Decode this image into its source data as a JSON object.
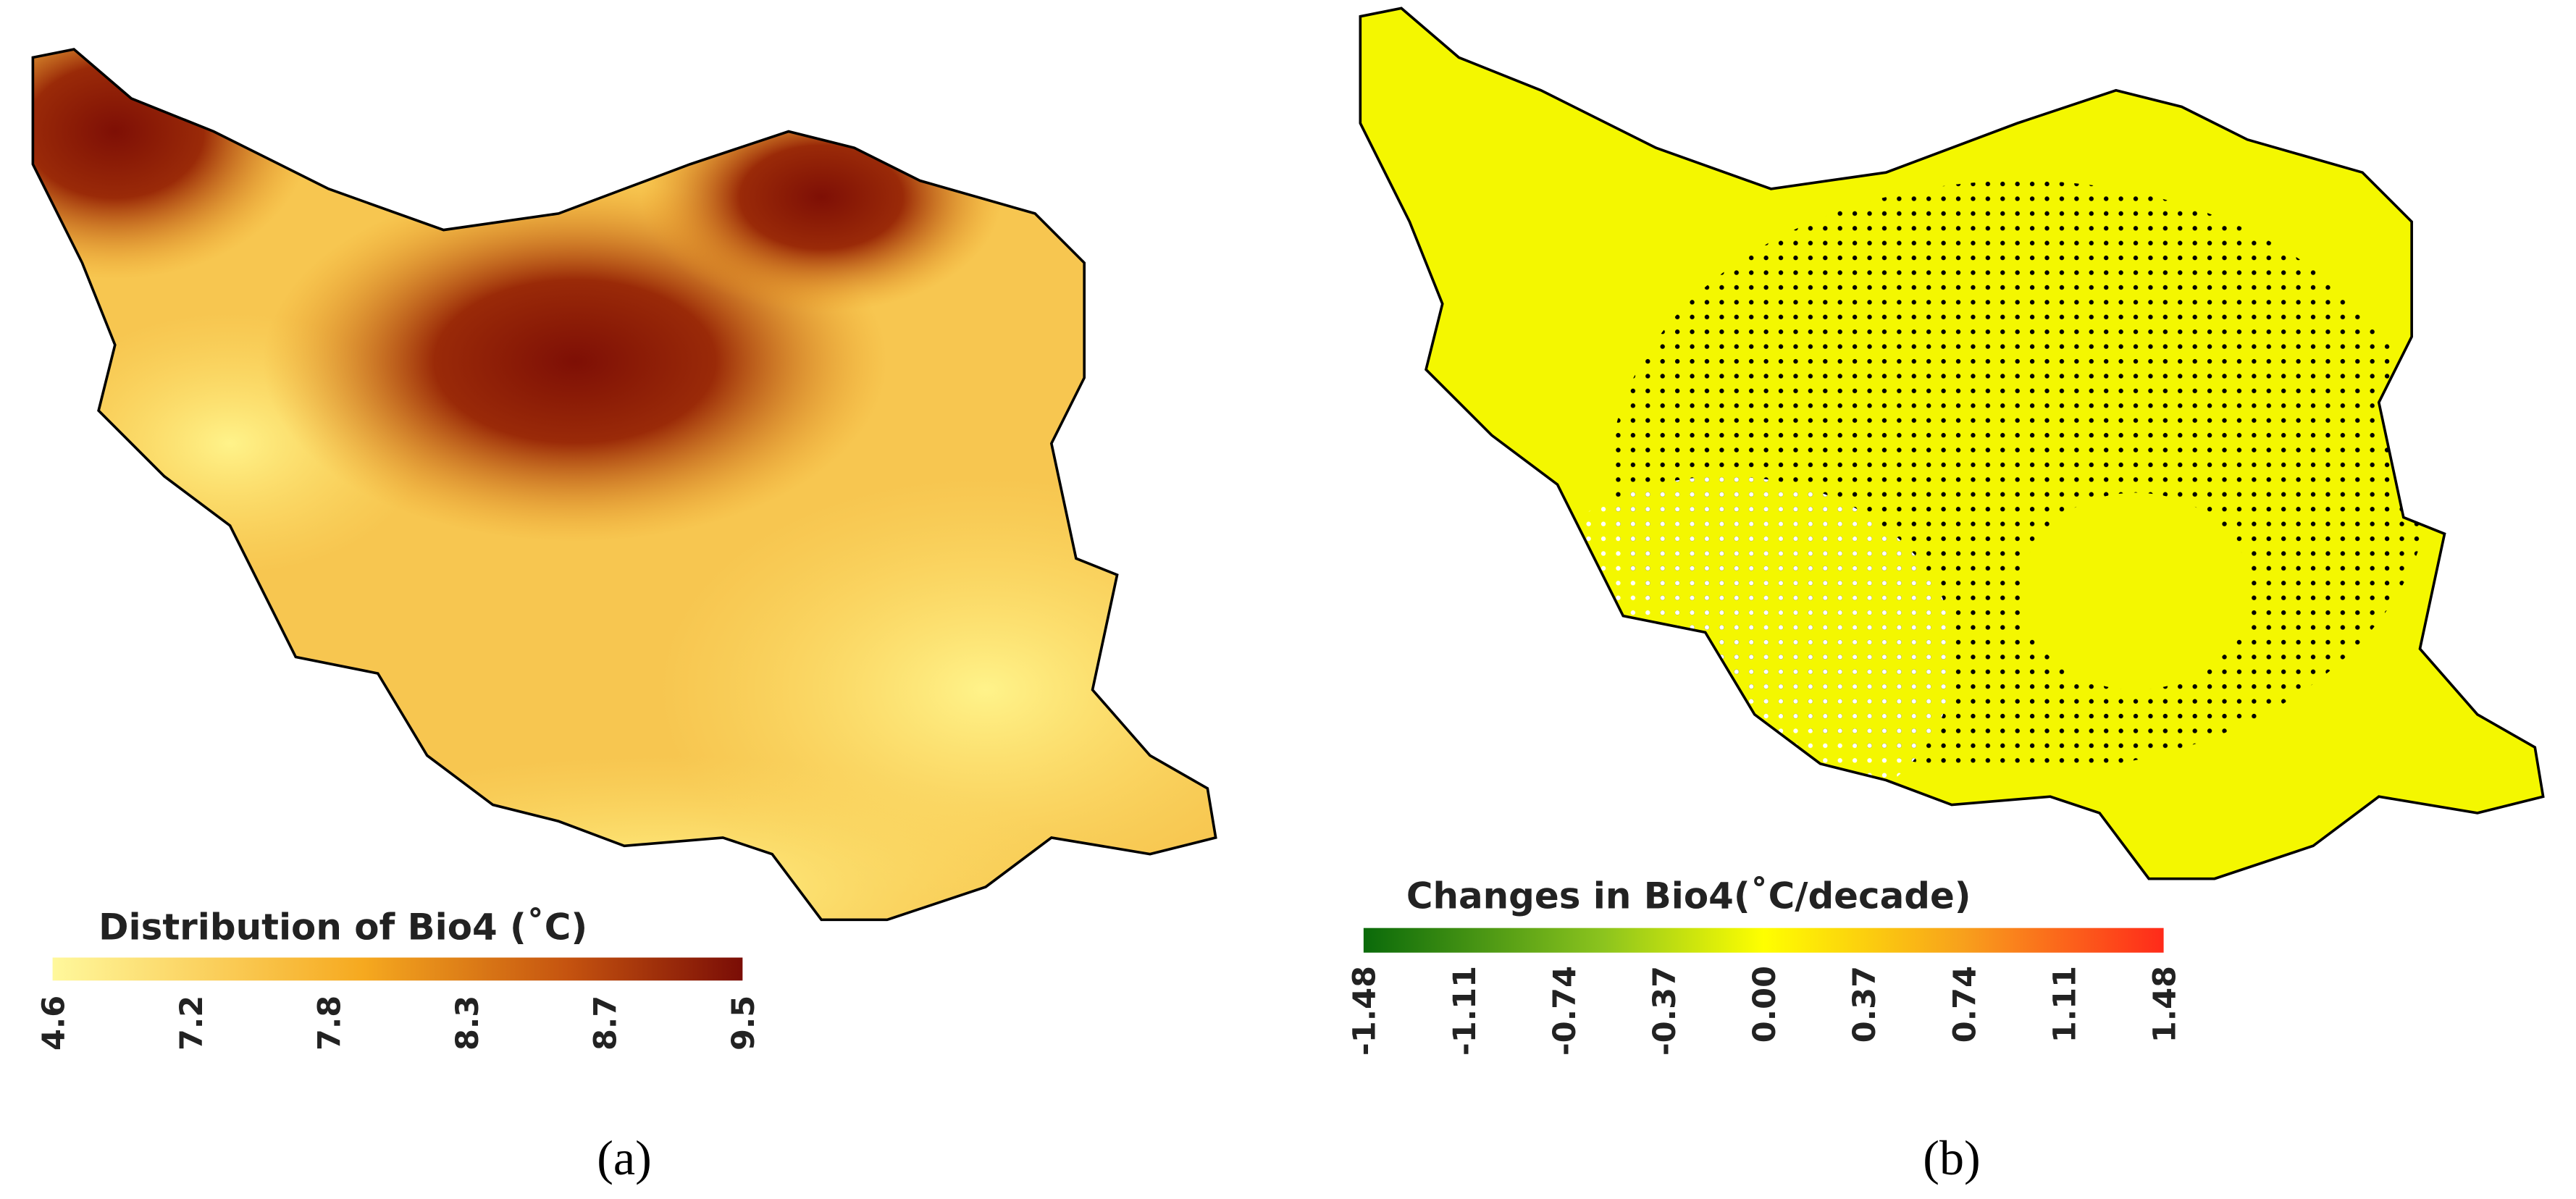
{
  "panels": [
    {
      "legend_title": "Distribution of Bio4 (˚C)",
      "legend_ticks": [
        "4.6",
        "7.2",
        "7.8",
        "8.3",
        "8.7",
        "9.5"
      ],
      "caption": "(a)"
    },
    {
      "legend_title": "Changes in Bio4(˚C/decade)",
      "legend_ticks": [
        "-1.48",
        "-1.11",
        "-0.74",
        "-0.37",
        "0.00",
        "0.37",
        "0.74",
        "1.11",
        "1.48"
      ],
      "caption": "(b)"
    }
  ]
}
